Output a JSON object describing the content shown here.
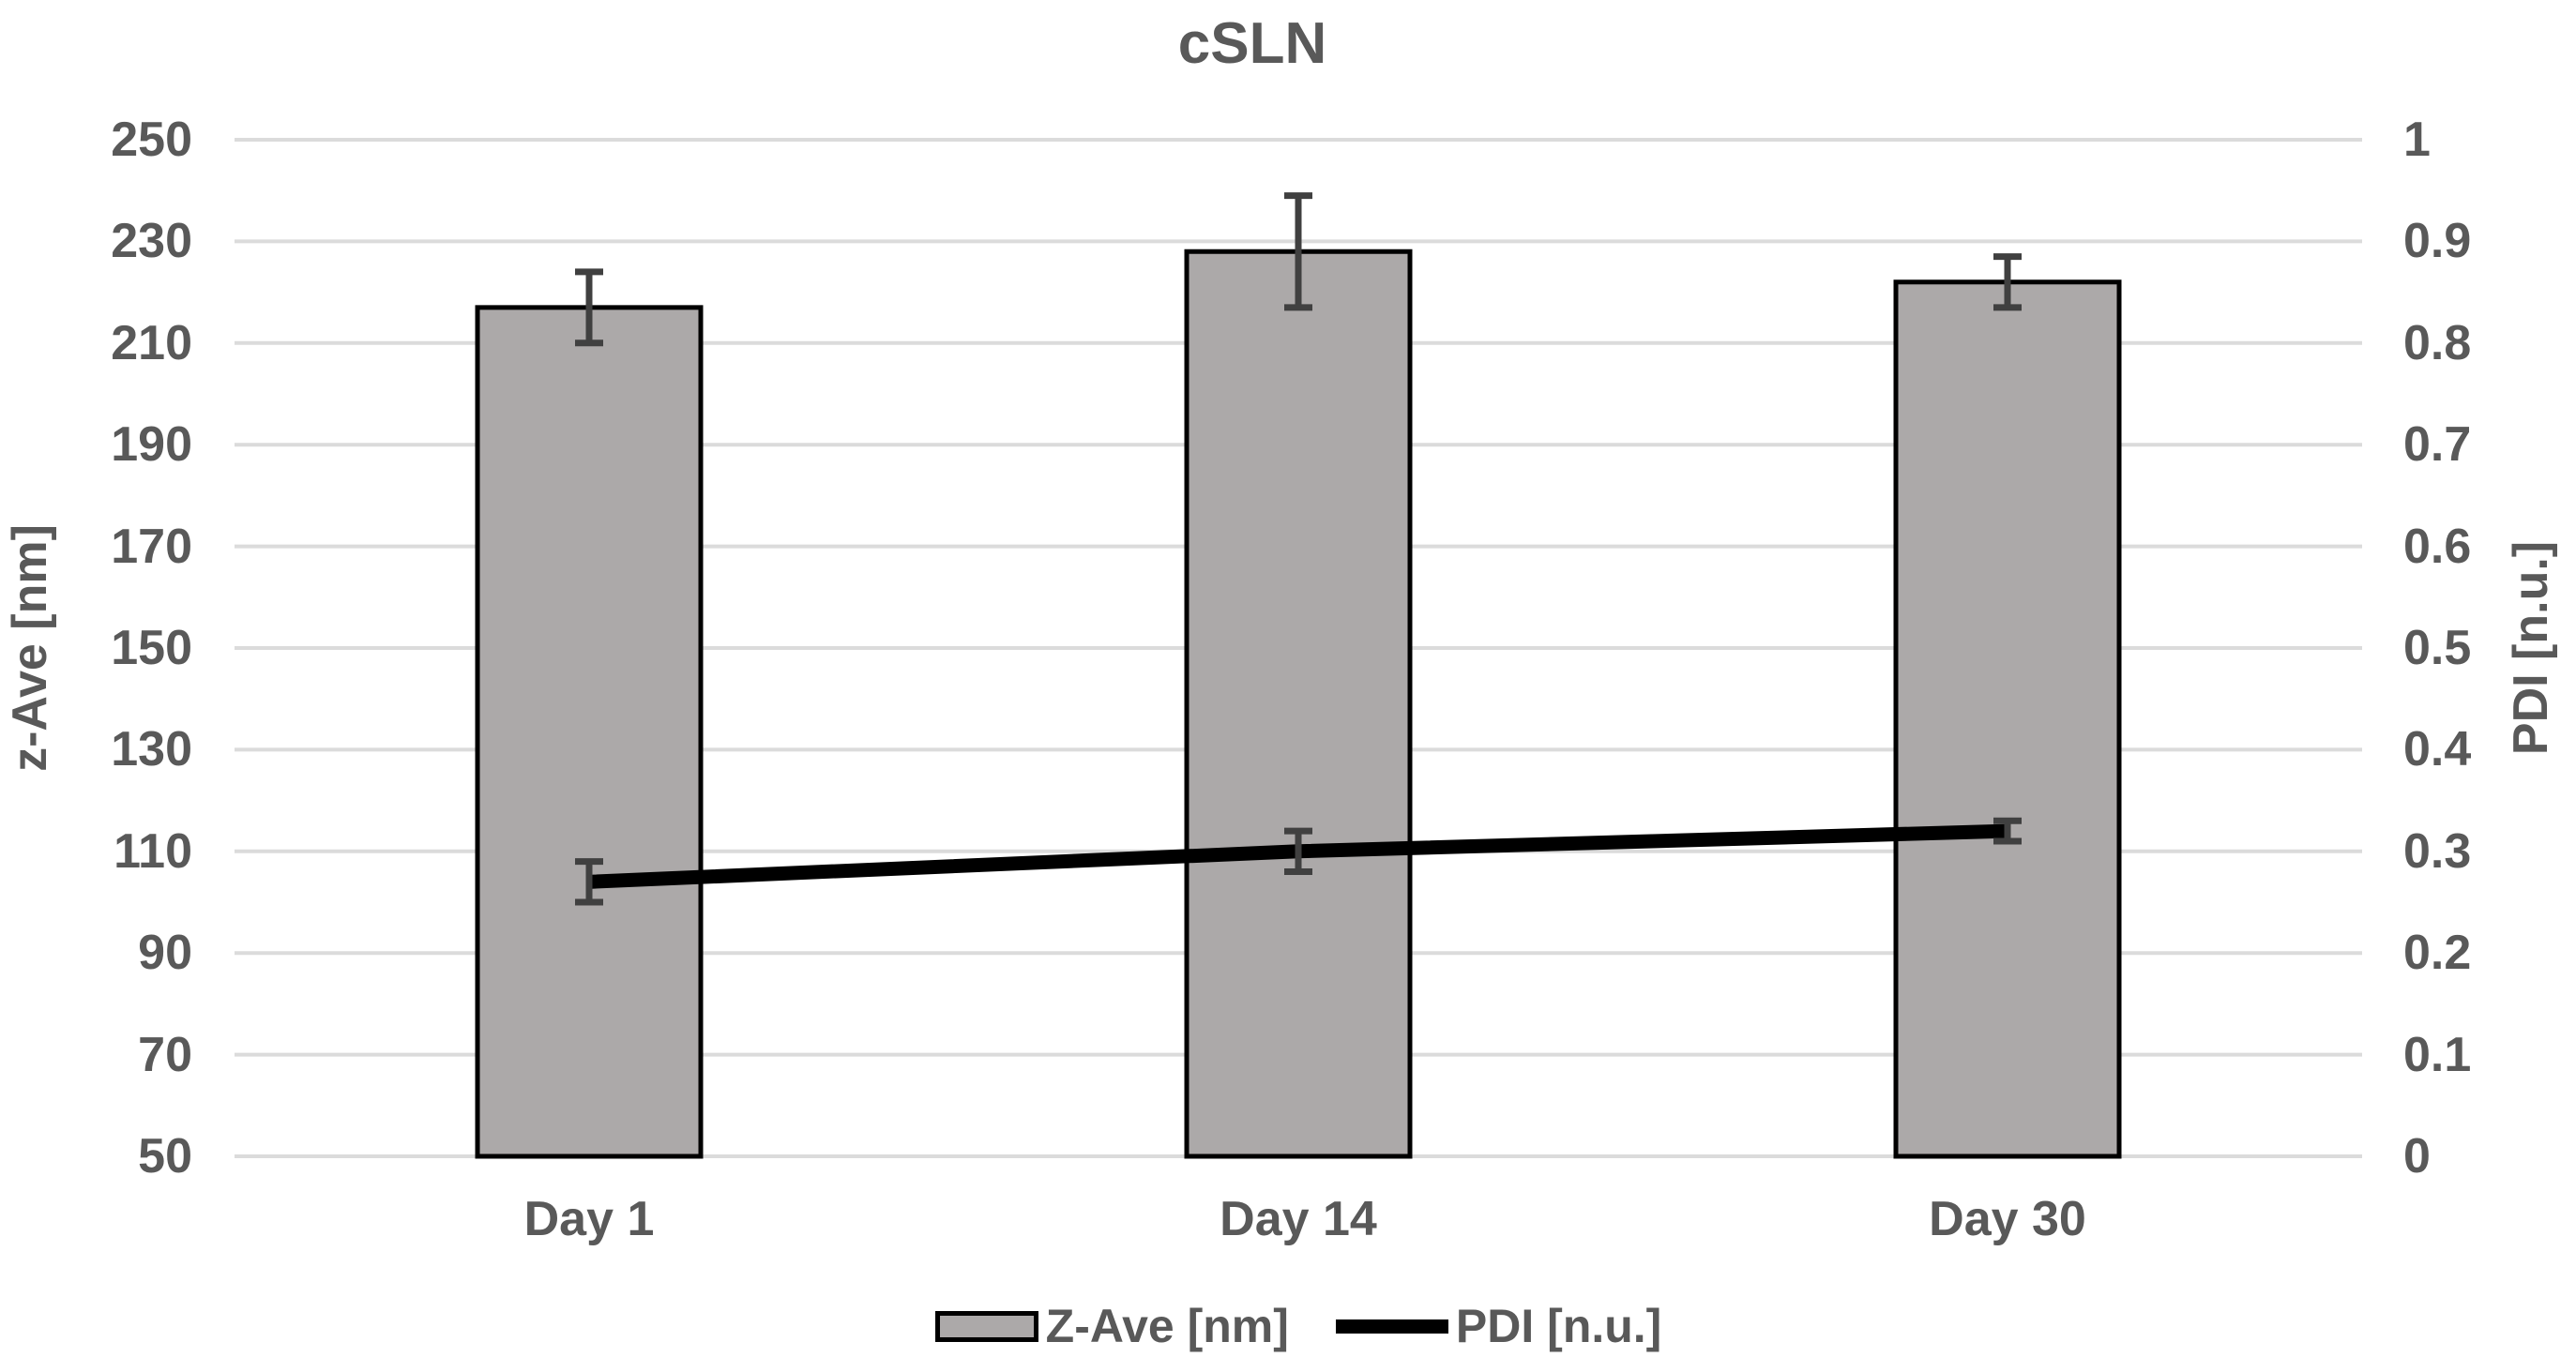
{
  "chart_data": {
    "type": "combo-bar-line",
    "title": "cSLN",
    "categories": [
      "Day 1",
      "Day 14",
      "Day 30"
    ],
    "series": [
      {
        "name": "Z-Ave [nm]",
        "type": "bar",
        "axis": "left",
        "values": [
          217,
          228,
          222
        ],
        "errors": [
          7,
          11,
          5
        ]
      },
      {
        "name": "PDI [n.u.]",
        "type": "line",
        "axis": "right",
        "values": [
          0.27,
          0.3,
          0.32
        ],
        "errors": [
          0.02,
          0.02,
          0.01
        ]
      }
    ],
    "left_axis": {
      "label": "z-Ave [nm]",
      "min": 50,
      "max": 250,
      "ticks": [
        "250",
        "230",
        "210",
        "190",
        "170",
        "150",
        "130",
        "110",
        "90",
        "70",
        "50"
      ]
    },
    "right_axis": {
      "label": "PDI [n.u.]",
      "min": 0,
      "max": 1,
      "ticks": [
        "1",
        "0.9",
        "0.8",
        "0.7",
        "0.6",
        "0.5",
        "0.4",
        "0.3",
        "0.2",
        "0.1",
        "0"
      ]
    },
    "legend": [
      {
        "label": "Z-Ave [nm]",
        "swatch": "bar"
      },
      {
        "label": "PDI [n.u.]",
        "swatch": "line"
      }
    ],
    "grid": true,
    "legend_position": "bottom",
    "colors": {
      "bar_fill": "#ACA9A9",
      "bar_border": "#000000",
      "line": "#000000",
      "error_bar": "#404040",
      "gridline": "#DBDBDB",
      "text": "#595959",
      "background": "#FFFFFF"
    }
  }
}
